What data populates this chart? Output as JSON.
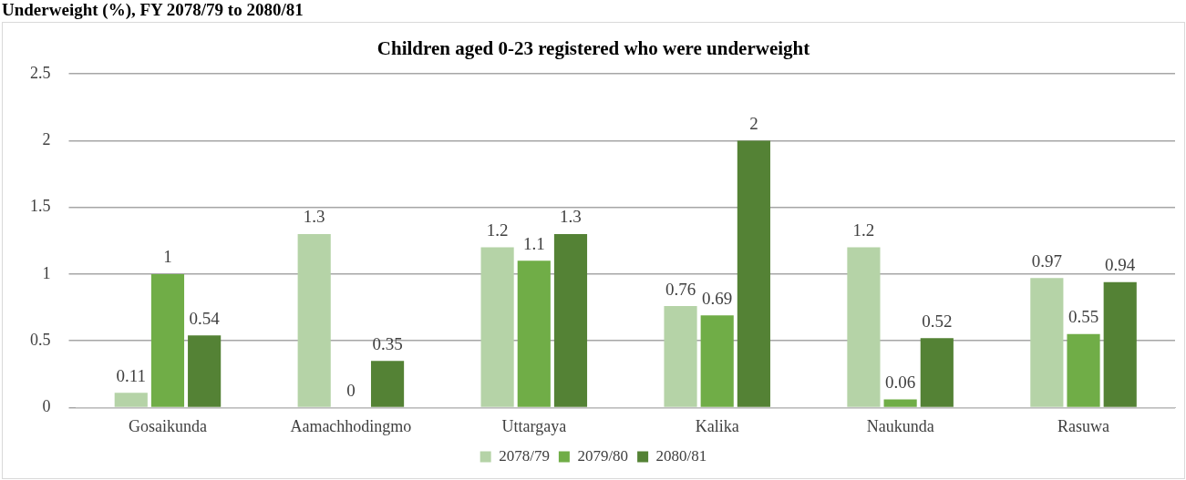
{
  "chart_data": {
    "type": "bar",
    "title": "Children aged 0-23 registered who were underweight",
    "subtitle": "Underweight (%), FY 2078/79 to 2080/81",
    "categories": [
      "Gosaikunda",
      "Aamachhodingmo",
      "Uttargaya",
      "Kalika",
      "Naukunda",
      "Rasuwa"
    ],
    "series": [
      {
        "name": "2078/79",
        "color": "#b5d3a7",
        "values": [
          0.11,
          1.3,
          1.2,
          0.76,
          1.2,
          0.97
        ]
      },
      {
        "name": "2079/80",
        "color": "#70ad47",
        "values": [
          1,
          0,
          1.1,
          0.69,
          0.06,
          0.55
        ]
      },
      {
        "name": "2080/81",
        "color": "#548235",
        "values": [
          0.54,
          0.35,
          1.3,
          2,
          0.52,
          0.94
        ]
      }
    ],
    "ylim": [
      0,
      2.5
    ],
    "yticks": [
      0,
      0.5,
      1,
      1.5,
      2,
      2.5
    ],
    "grid": "y",
    "legend": "bottom",
    "data_labels": true
  }
}
